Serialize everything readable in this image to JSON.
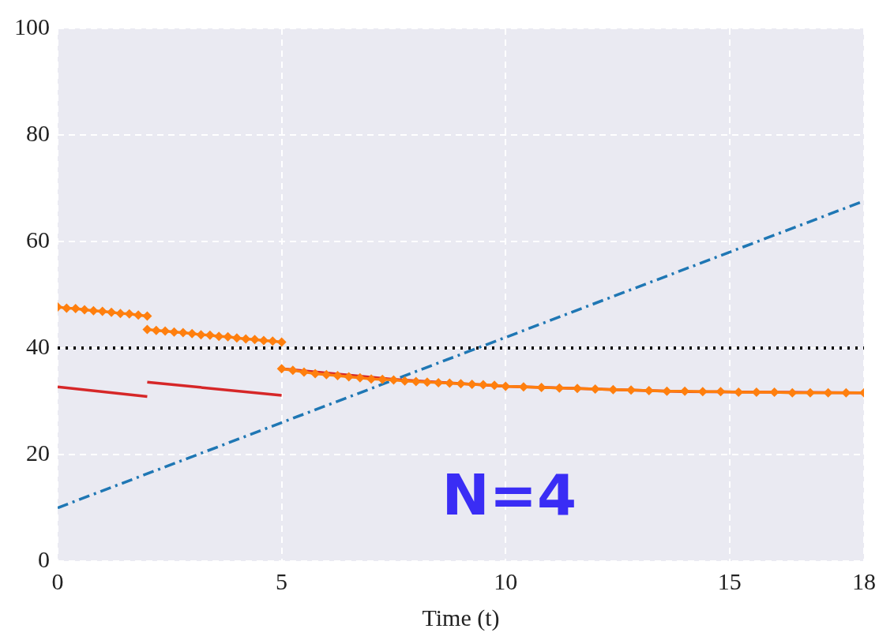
{
  "chart_data": {
    "type": "line",
    "xlabel": "Time (t)",
    "xlim": [
      0,
      18
    ],
    "xticks": [
      0,
      5,
      10,
      15,
      18
    ],
    "ylim": [
      0,
      100
    ],
    "yticks": [
      0,
      20,
      40,
      60,
      80,
      100
    ],
    "grid": true,
    "legend": false,
    "annotations": [
      "N=4"
    ],
    "ref_lines": [
      {
        "axis": "y",
        "value": 40,
        "color": "#000000",
        "line_style": "dotted"
      }
    ],
    "series": [
      {
        "color": "#1f77b4",
        "line_style": "dashed",
        "marker": "none",
        "x": [
          0,
          18
        ],
        "values": [
          10,
          67.6
        ]
      },
      {
        "color": "#d62728",
        "line_style": "solid",
        "marker": "none",
        "x": [
          0,
          2
        ],
        "values": [
          32.7,
          30.9
        ]
      },
      {
        "color": "#d62728",
        "line_style": "solid",
        "marker": "none",
        "x": [
          2,
          5
        ],
        "values": [
          33.6,
          31.1
        ]
      },
      {
        "color": "#d62728",
        "line_style": "solid",
        "marker": "none",
        "x": [
          5,
          7.5,
          10,
          14,
          18
        ],
        "values": [
          36.1,
          34.1,
          32.8,
          31.8,
          31.6
        ]
      },
      {
        "color": "#ff7f0e",
        "line_style": "solid",
        "marker": "diamond",
        "x": [
          0,
          0.2,
          0.4,
          0.6,
          0.8,
          1,
          1.2,
          1.4,
          1.6,
          1.8,
          2
        ],
        "values": [
          47.7,
          47.5,
          47.4,
          47.2,
          47.0,
          46.9,
          46.7,
          46.5,
          46.4,
          46.2,
          46.0
        ]
      },
      {
        "color": "#ff7f0e",
        "line_style": "solid",
        "marker": "diamond",
        "x": [
          2,
          2.2,
          2.4,
          2.6,
          2.8,
          3,
          3.2,
          3.4,
          3.6,
          3.8,
          4,
          4.2,
          4.4,
          4.6,
          4.8,
          5
        ],
        "values": [
          43.5,
          43.3,
          43.2,
          43.0,
          42.9,
          42.7,
          42.5,
          42.4,
          42.2,
          42.1,
          41.9,
          41.7,
          41.6,
          41.4,
          41.3,
          41.1
        ]
      },
      {
        "color": "#ff7f0e",
        "line_style": "solid",
        "marker": "diamond",
        "x": [
          5,
          5.25,
          5.5,
          5.75,
          6,
          6.25,
          6.5,
          6.75,
          7,
          7.25,
          7.5,
          7.75,
          8,
          8.25,
          8.5,
          8.75,
          9,
          9.25,
          9.5,
          9.75,
          10,
          10.4,
          10.8,
          11.2,
          11.6,
          12,
          12.4,
          12.8,
          13.2,
          13.6,
          14,
          14.4,
          14.8,
          15.2,
          15.6,
          16,
          16.4,
          16.8,
          17.2,
          17.6,
          18
        ],
        "values": [
          36.1,
          35.8,
          35.5,
          35.2,
          35.0,
          34.8,
          34.6,
          34.4,
          34.2,
          34.1,
          34.0,
          33.8,
          33.7,
          33.6,
          33.5,
          33.4,
          33.3,
          33.2,
          33.1,
          33.0,
          32.8,
          32.7,
          32.6,
          32.5,
          32.4,
          32.3,
          32.2,
          32.1,
          32.0,
          31.9,
          31.9,
          31.8,
          31.8,
          31.7,
          31.7,
          31.7,
          31.6,
          31.6,
          31.6,
          31.6,
          31.6
        ]
      }
    ]
  }
}
